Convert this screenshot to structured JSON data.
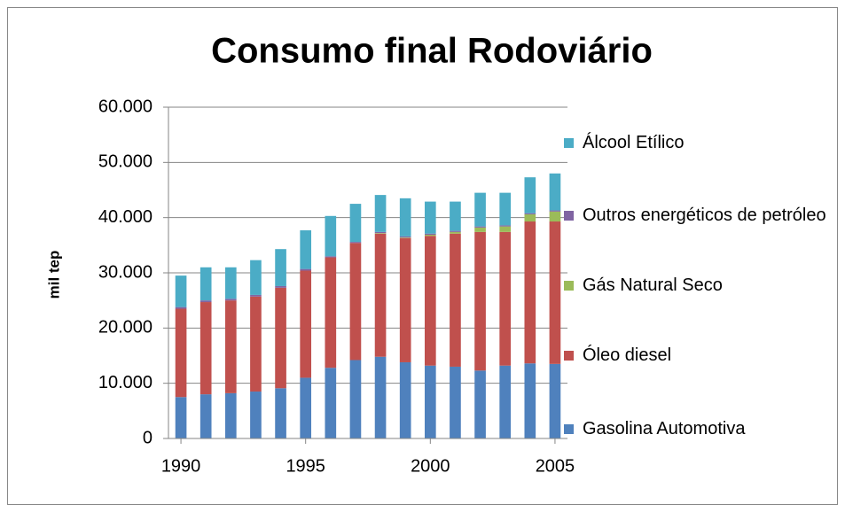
{
  "chart_data": {
    "type": "stacked_bar",
    "title": "Consumo final Rodoviário",
    "y_label": "mil tep",
    "x": [
      1990,
      1991,
      1992,
      1993,
      1994,
      1995,
      1996,
      1997,
      1998,
      1999,
      2000,
      2001,
      2002,
      2003,
      2004,
      2005
    ],
    "xlim": [
      1989.5,
      2005.5
    ],
    "xticks": [
      1990,
      1995,
      2000,
      2005
    ],
    "ylim": [
      0,
      60000
    ],
    "yticks": [
      0,
      {
        "value": 10000,
        "label": "10.000"
      },
      {
        "value": 20000,
        "label": "20.000"
      },
      {
        "value": 30000,
        "label": "30.000"
      },
      {
        "value": 40000,
        "label": "40.000"
      },
      {
        "value": 50000,
        "label": "50.000"
      },
      {
        "value": 60000,
        "label": "60.000"
      }
    ],
    "grid": true,
    "legend": "right",
    "series": [
      {
        "name": "Gasolina Automotiva",
        "color": "#4f81bd",
        "values": [
          7500,
          8000,
          8200,
          8500,
          9100,
          11000,
          12800,
          14200,
          14800,
          13800,
          13200,
          13000,
          12300,
          13200,
          13600,
          13500
        ]
      },
      {
        "name": "Óleo diesel",
        "color": "#c0504d",
        "values": [
          16000,
          16700,
          16800,
          17200,
          18200,
          19400,
          20000,
          21200,
          22300,
          22500,
          23500,
          24100,
          25100,
          24200,
          25700,
          25800
        ]
      },
      {
        "name": "Gás Natural Seco",
        "color": "#9bbb59",
        "values": [
          0,
          0,
          0,
          0,
          0,
          0,
          0,
          0,
          100,
          100,
          200,
          300,
          800,
          1000,
          1300,
          1800
        ]
      },
      {
        "name": "Outros energéticos de petróleo",
        "color": "#8064a2",
        "values": [
          300,
          300,
          300,
          300,
          300,
          300,
          200,
          200,
          200,
          200,
          200,
          200,
          200,
          200,
          200,
          200
        ]
      },
      {
        "name": "Álcool Etílico",
        "color": "#4bacc6",
        "values": [
          5700,
          6000,
          5700,
          6300,
          6700,
          7000,
          7300,
          6900,
          6700,
          6900,
          5800,
          5300,
          6100,
          5900,
          6500,
          6700
        ]
      }
    ]
  }
}
